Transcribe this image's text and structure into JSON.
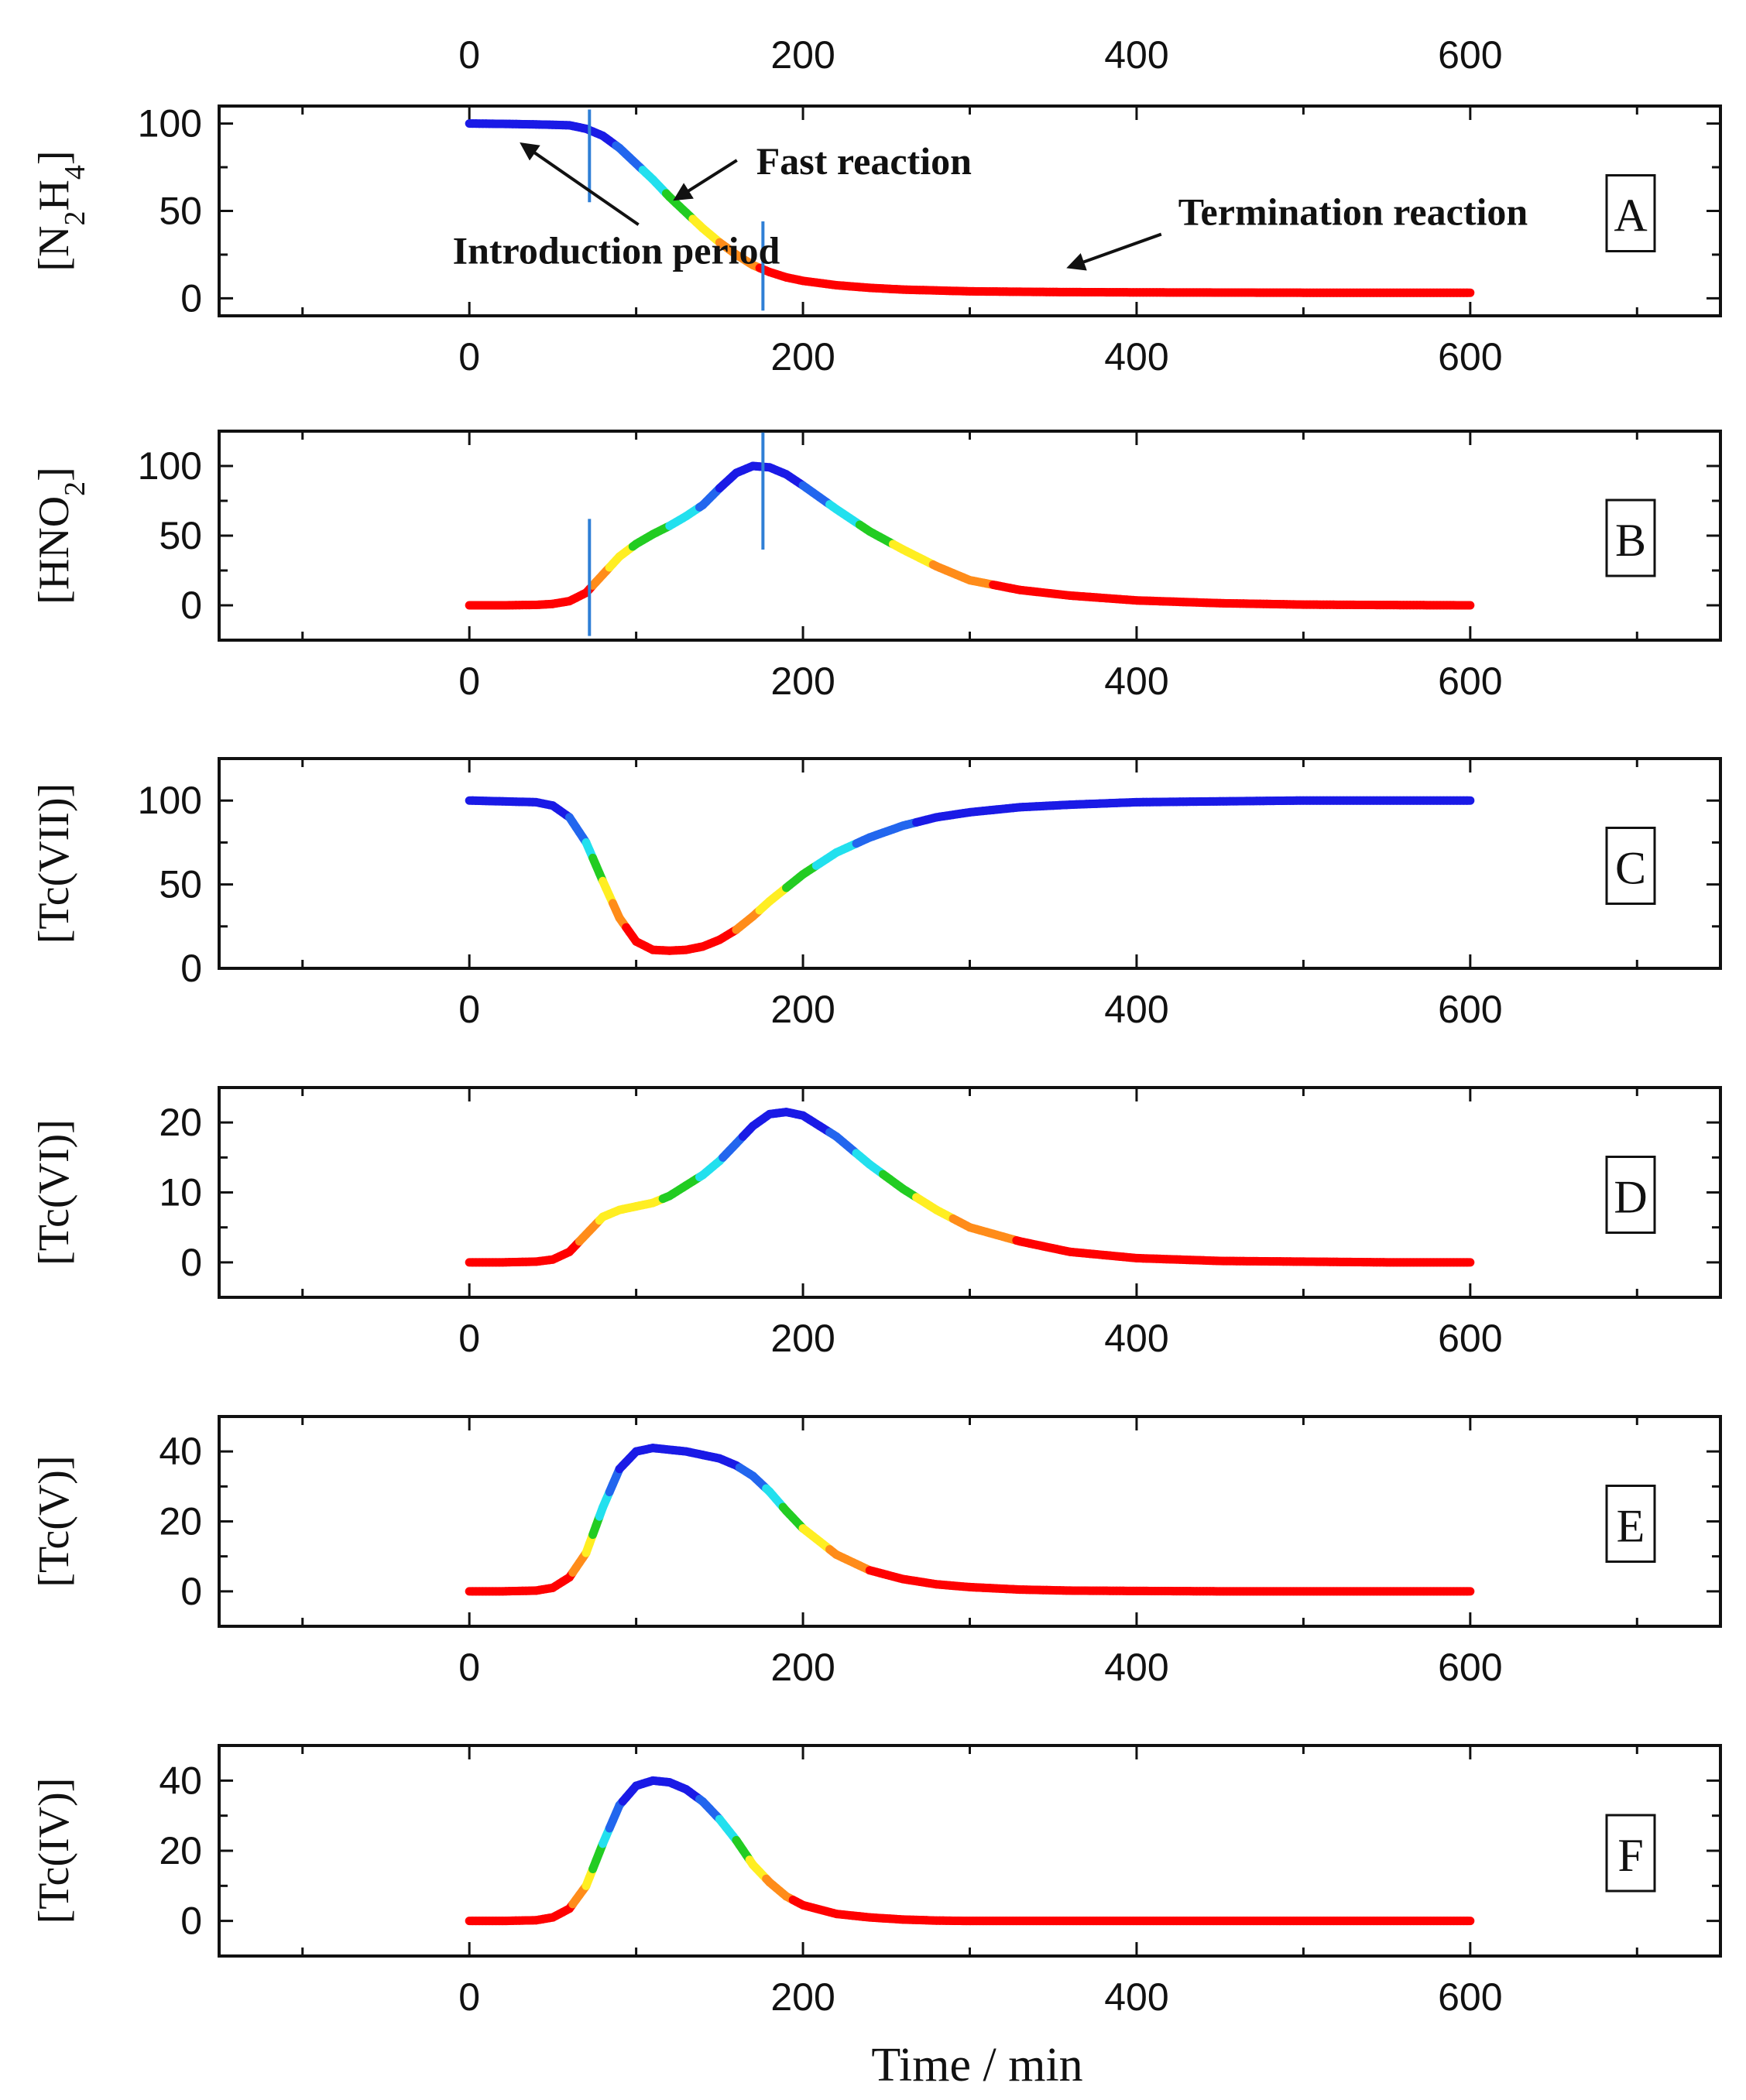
{
  "figure": {
    "xlabel": "Time / min",
    "colormap": [
      "#ff0000",
      "#ff8c1a",
      "#ffee22",
      "#22cc22",
      "#22e0ee",
      "#2266ee",
      "#1a1ae6"
    ],
    "marker_color": "#2f7fd6"
  },
  "chart_data": [
    {
      "type": "line",
      "panel": "A",
      "ylabel": "[N2H4]",
      "ylabel_parts": {
        "base": "[N",
        "sub1": "2",
        "mid": "H",
        "sub2": "4",
        "end": "]"
      },
      "xlim": [
        -150,
        750
      ],
      "ylim": [
        -10,
        110
      ],
      "xticks": [
        0,
        200,
        400,
        600
      ],
      "yticks": [
        0,
        50,
        100
      ],
      "x": [
        0,
        20,
        40,
        60,
        70,
        80,
        90,
        100,
        110,
        120,
        130,
        140,
        150,
        160,
        170,
        180,
        190,
        200,
        220,
        240,
        260,
        280,
        300,
        350,
        400,
        450,
        500,
        550,
        600
      ],
      "y": [
        100,
        99.8,
        99.5,
        99,
        97,
        93,
        86,
        77,
        68,
        58,
        49,
        40,
        32,
        25,
        19,
        15,
        12,
        10,
        7.5,
        6,
        5,
        4.5,
        4,
        3.6,
        3.4,
        3.3,
        3.2,
        3.2,
        3.2
      ],
      "vlines": [
        72,
        176
      ],
      "annotations": [
        {
          "text": "Introduction period",
          "x": -10,
          "y": 20,
          "arrow_to": [
            32,
            88
          ]
        },
        {
          "text": "Fast reaction",
          "x": 172,
          "y": 71,
          "arrow_to": [
            124,
            57
          ]
        },
        {
          "text": "Termination reaction",
          "x": 425,
          "y": 42,
          "arrow_to": [
            360,
            18
          ]
        }
      ]
    },
    {
      "type": "line",
      "panel": "B",
      "ylabel": "[HNO2]",
      "ylabel_parts": {
        "base": "[HNO",
        "sub1": "2",
        "end": "]"
      },
      "xlim": [
        -150,
        750
      ],
      "ylim": [
        -25,
        125
      ],
      "xticks": [
        0,
        200,
        400,
        600
      ],
      "yticks": [
        0,
        50,
        100
      ],
      "x": [
        0,
        20,
        40,
        50,
        60,
        70,
        80,
        90,
        100,
        110,
        120,
        130,
        140,
        150,
        160,
        170,
        180,
        190,
        200,
        220,
        240,
        260,
        280,
        300,
        330,
        360,
        400,
        450,
        500,
        550,
        600
      ],
      "y": [
        0,
        0,
        0.3,
        1,
        3,
        9,
        22,
        35,
        44,
        51,
        57,
        64,
        72,
        84,
        95,
        100,
        99,
        94,
        86,
        69,
        53,
        40,
        28,
        18,
        11,
        7,
        3.5,
        1.5,
        0.5,
        0.2,
        0
      ],
      "vlines": [
        72,
        176
      ]
    },
    {
      "type": "line",
      "panel": "C",
      "ylabel": "[Tc(VII)]",
      "xlim": [
        -150,
        750
      ],
      "ylim": [
        0,
        125
      ],
      "xticks": [
        0,
        200,
        400,
        600
      ],
      "yticks": [
        0,
        50,
        100
      ],
      "x": [
        0,
        20,
        40,
        50,
        60,
        70,
        80,
        90,
        100,
        110,
        120,
        130,
        140,
        150,
        160,
        170,
        180,
        190,
        200,
        220,
        240,
        260,
        280,
        300,
        330,
        360,
        400,
        450,
        500,
        550,
        600
      ],
      "y": [
        100,
        99.5,
        99,
        97,
        90,
        75,
        52,
        30,
        16,
        11,
        10.5,
        11,
        13,
        17,
        23,
        31,
        40,
        48,
        56,
        69,
        78,
        85,
        90,
        93,
        96,
        97.5,
        99,
        99.5,
        100,
        100,
        100
      ]
    },
    {
      "type": "line",
      "panel": "D",
      "ylabel": "[Tc(VI)]",
      "xlim": [
        -150,
        750
      ],
      "ylim": [
        -5,
        25
      ],
      "xticks": [
        0,
        200,
        400,
        600
      ],
      "yticks": [
        0,
        10,
        20
      ],
      "x": [
        0,
        20,
        40,
        50,
        60,
        70,
        80,
        90,
        100,
        110,
        120,
        130,
        140,
        150,
        160,
        170,
        180,
        190,
        200,
        220,
        240,
        260,
        280,
        300,
        330,
        360,
        400,
        450,
        500,
        550,
        600
      ],
      "y": [
        0,
        0,
        0.1,
        0.4,
        1.5,
        4,
        6.5,
        7.5,
        8,
        8.5,
        9.5,
        11,
        12.5,
        14.5,
        17,
        19.5,
        21.2,
        21.5,
        21,
        18,
        14,
        10.5,
        7.5,
        5,
        3,
        1.5,
        0.6,
        0.2,
        0.1,
        0,
        0
      ]
    },
    {
      "type": "line",
      "panel": "E",
      "ylabel": "[Tc(V)]",
      "xlim": [
        -150,
        750
      ],
      "ylim": [
        -10,
        50
      ],
      "xticks": [
        0,
        200,
        400,
        600
      ],
      "yticks": [
        0,
        20,
        40
      ],
      "x": [
        0,
        20,
        40,
        50,
        60,
        70,
        80,
        90,
        100,
        110,
        120,
        130,
        140,
        150,
        160,
        170,
        180,
        190,
        200,
        220,
        240,
        260,
        280,
        300,
        330,
        360,
        400,
        450,
        500,
        550,
        600
      ],
      "y": [
        0,
        0,
        0.2,
        1,
        4,
        11,
        24,
        35,
        40,
        41,
        40.5,
        40,
        39,
        38,
        36,
        33,
        28.5,
        23,
        18,
        10.5,
        6,
        3.5,
        2,
        1.2,
        0.5,
        0.2,
        0.1,
        0,
        0,
        0,
        0
      ]
    },
    {
      "type": "line",
      "panel": "F",
      "ylabel": "[Tc(IV)]",
      "xlim": [
        -150,
        750
      ],
      "ylim": [
        -10,
        50
      ],
      "xticks": [
        0,
        200,
        400,
        600
      ],
      "yticks": [
        0,
        20,
        40
      ],
      "x": [
        0,
        20,
        40,
        50,
        60,
        70,
        80,
        90,
        100,
        110,
        120,
        130,
        140,
        150,
        160,
        170,
        180,
        190,
        200,
        220,
        240,
        260,
        280,
        300,
        330,
        360,
        400,
        450,
        500,
        550,
        600
      ],
      "y": [
        0,
        0,
        0.2,
        1,
        3.5,
        10,
        22,
        33,
        38.5,
        40,
        39.5,
        37.5,
        34,
        29,
        23,
        16,
        11,
        7,
        4.5,
        2,
        1,
        0.4,
        0.1,
        0,
        0,
        0,
        0,
        0,
        0,
        0,
        0
      ]
    }
  ]
}
